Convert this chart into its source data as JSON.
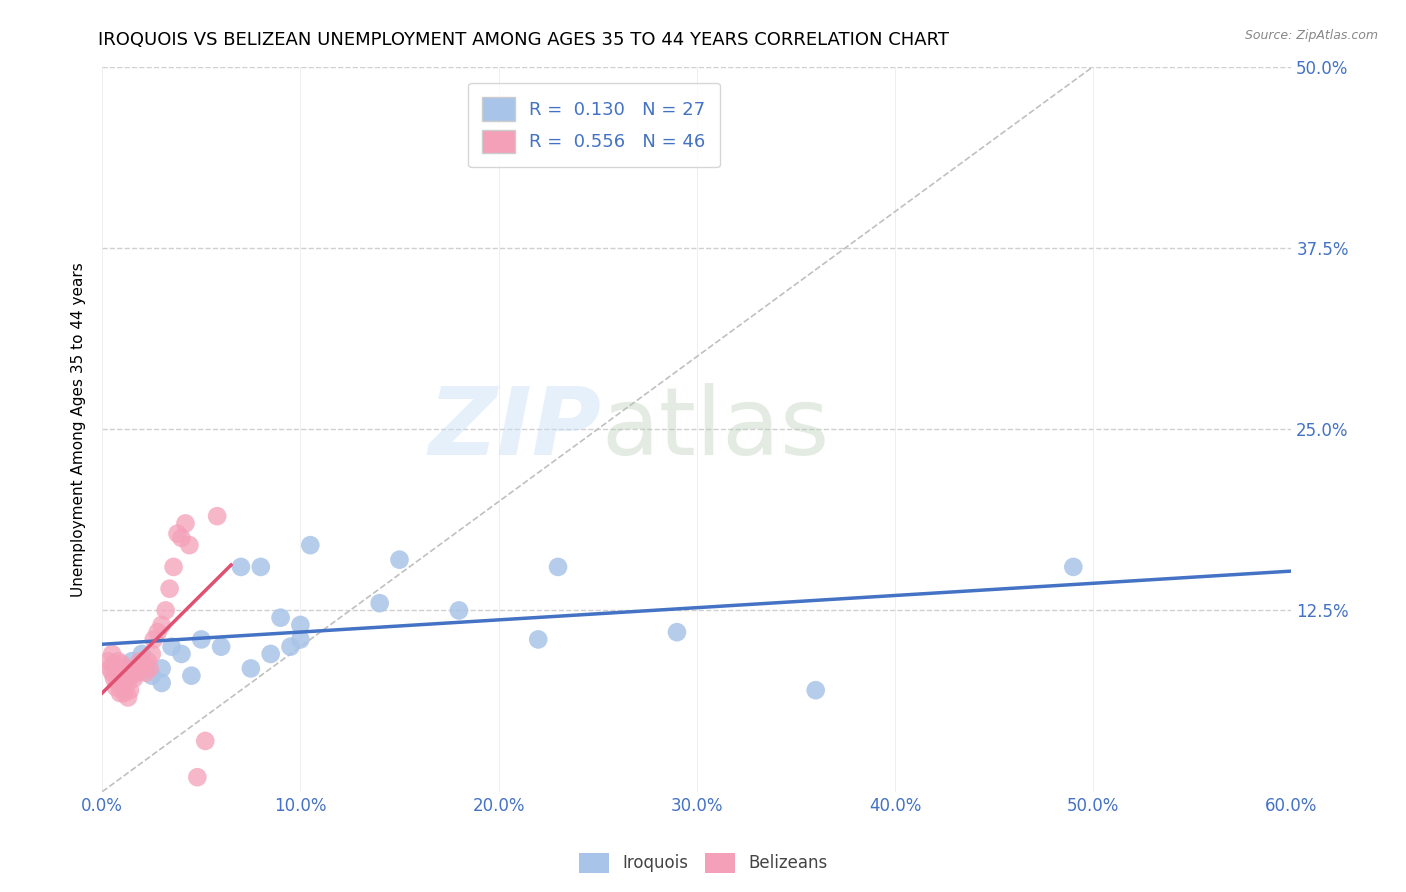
{
  "title": "IROQUOIS VS BELIZEAN UNEMPLOYMENT AMONG AGES 35 TO 44 YEARS CORRELATION CHART",
  "source": "Source: ZipAtlas.com",
  "ylabel": "Unemployment Among Ages 35 to 44 years",
  "xlim": [
    0.0,
    0.6
  ],
  "ylim": [
    0.0,
    0.5
  ],
  "xticks": [
    0.0,
    0.1,
    0.2,
    0.3,
    0.4,
    0.5,
    0.6
  ],
  "yticks": [
    0.0,
    0.125,
    0.25,
    0.375,
    0.5
  ],
  "xtick_labels": [
    "0.0%",
    "10.0%",
    "20.0%",
    "30.0%",
    "40.0%",
    "50.0%",
    "60.0%"
  ],
  "ytick_labels_right": [
    "",
    "12.5%",
    "25.0%",
    "37.5%",
    "50.0%"
  ],
  "iroquois_R": 0.13,
  "iroquois_N": 27,
  "belizean_R": 0.556,
  "belizean_N": 46,
  "iroquois_color": "#a8c4e8",
  "belizean_color": "#f4a0b8",
  "iroquois_line_color": "#4472c4",
  "belizean_line_color": "#e05070",
  "diagonal_color": "#c0c0c0",
  "background_color": "#ffffff",
  "grid_color": "#d0d0d0",
  "iroquois_x": [
    0.015,
    0.02,
    0.025,
    0.03,
    0.03,
    0.035,
    0.04,
    0.045,
    0.05,
    0.06,
    0.07,
    0.075,
    0.08,
    0.085,
    0.09,
    0.095,
    0.1,
    0.1,
    0.105,
    0.14,
    0.15,
    0.18,
    0.22,
    0.23,
    0.29,
    0.36,
    0.49
  ],
  "iroquois_y": [
    0.09,
    0.095,
    0.08,
    0.085,
    0.075,
    0.1,
    0.095,
    0.08,
    0.105,
    0.1,
    0.155,
    0.085,
    0.155,
    0.095,
    0.12,
    0.1,
    0.105,
    0.115,
    0.17,
    0.13,
    0.16,
    0.125,
    0.105,
    0.155,
    0.11,
    0.07,
    0.155
  ],
  "belizean_x": [
    0.003,
    0.004,
    0.005,
    0.005,
    0.006,
    0.006,
    0.007,
    0.007,
    0.008,
    0.008,
    0.009,
    0.009,
    0.01,
    0.01,
    0.011,
    0.011,
    0.012,
    0.012,
    0.013,
    0.013,
    0.014,
    0.014,
    0.015,
    0.016,
    0.017,
    0.018,
    0.019,
    0.02,
    0.021,
    0.022,
    0.023,
    0.024,
    0.025,
    0.026,
    0.028,
    0.03,
    0.032,
    0.034,
    0.036,
    0.038,
    0.04,
    0.042,
    0.044,
    0.048,
    0.052,
    0.058
  ],
  "belizean_y": [
    0.09,
    0.085,
    0.095,
    0.082,
    0.088,
    0.078,
    0.085,
    0.072,
    0.09,
    0.075,
    0.082,
    0.068,
    0.088,
    0.075,
    0.082,
    0.068,
    0.085,
    0.072,
    0.078,
    0.065,
    0.082,
    0.07,
    0.08,
    0.078,
    0.085,
    0.082,
    0.09,
    0.085,
    0.088,
    0.082,
    0.09,
    0.085,
    0.095,
    0.105,
    0.11,
    0.115,
    0.125,
    0.14,
    0.155,
    0.178,
    0.175,
    0.185,
    0.17,
    0.01,
    0.035,
    0.19
  ],
  "watermark_zip": "ZIP",
  "watermark_atlas": "atlas",
  "title_fontsize": 13,
  "axis_label_fontsize": 11,
  "tick_fontsize": 12,
  "legend_fontsize": 13
}
